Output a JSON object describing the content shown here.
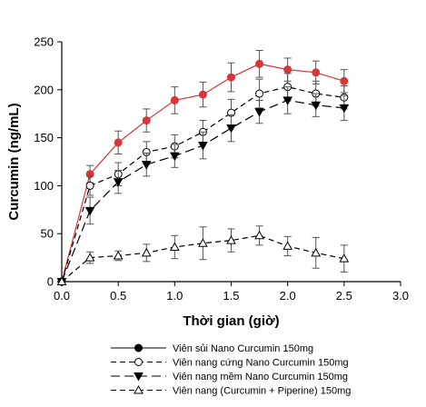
{
  "chart_data": {
    "type": "line",
    "title": "",
    "xlabel": "Thời gian (giờ)",
    "ylabel": "Curcumin (ng/mL)",
    "xlim": [
      0,
      3.0
    ],
    "ylim": [
      0,
      250
    ],
    "xticks": [
      "0.0",
      "0.5",
      "1.0",
      "1.5",
      "2.0",
      "2.5",
      "3.0"
    ],
    "yticks": [
      "0",
      "50",
      "100",
      "150",
      "200",
      "250"
    ],
    "grid": false,
    "legend_position": "bottom",
    "series": [
      {
        "name": "Viên sủi Nano Curcumin 150mg",
        "marker": "filled-circle",
        "line": "solid",
        "color": "#d9343a",
        "x": [
          0,
          0.25,
          0.5,
          0.75,
          1.0,
          1.25,
          1.5,
          1.75,
          2.0,
          2.25,
          2.5
        ],
        "y": [
          0,
          112,
          145,
          168,
          189,
          195,
          213,
          227,
          221,
          218,
          209
        ],
        "err": [
          0,
          9,
          12,
          12,
          14,
          13,
          15,
          14,
          12,
          12,
          12
        ]
      },
      {
        "name": "Viên nang cứng Nano Curcumin 150mg",
        "marker": "open-circle",
        "line": "dashed",
        "color": "#000000",
        "x": [
          0,
          0.25,
          0.5,
          0.75,
          1.0,
          1.25,
          1.5,
          1.75,
          2.0,
          2.25,
          2.5
        ],
        "y": [
          0,
          100,
          112,
          135,
          141,
          156,
          176,
          196,
          203,
          196,
          192
        ],
        "err": [
          0,
          10,
          12,
          11,
          12,
          12,
          14,
          15,
          14,
          13,
          12
        ]
      },
      {
        "name": "Viên nang mềm Nano Curcumin 150mg",
        "marker": "filled-triangle-down",
        "line": "long-dashed",
        "color": "#000000",
        "x": [
          0,
          0.25,
          0.5,
          0.75,
          1.0,
          1.25,
          1.5,
          1.75,
          2.0,
          2.25,
          2.5
        ],
        "y": [
          0,
          74,
          104,
          122,
          131,
          142,
          160,
          177,
          189,
          184,
          181
        ],
        "err": [
          0,
          14,
          12,
          12,
          12,
          14,
          14,
          12,
          14,
          12,
          13
        ]
      },
      {
        "name": "Viên nang (Curcumin + Piperine) 150mg",
        "marker": "open-triangle-up",
        "line": "dashed",
        "color": "#000000",
        "x": [
          0,
          0.25,
          0.5,
          0.75,
          1.0,
          1.25,
          1.5,
          1.75,
          2.0,
          2.25,
          2.5
        ],
        "y": [
          0,
          25,
          27,
          30,
          36,
          40,
          43,
          48,
          37,
          30,
          24
        ],
        "err": [
          0,
          6,
          5,
          9,
          12,
          17,
          12,
          10,
          10,
          16,
          14
        ]
      }
    ]
  }
}
